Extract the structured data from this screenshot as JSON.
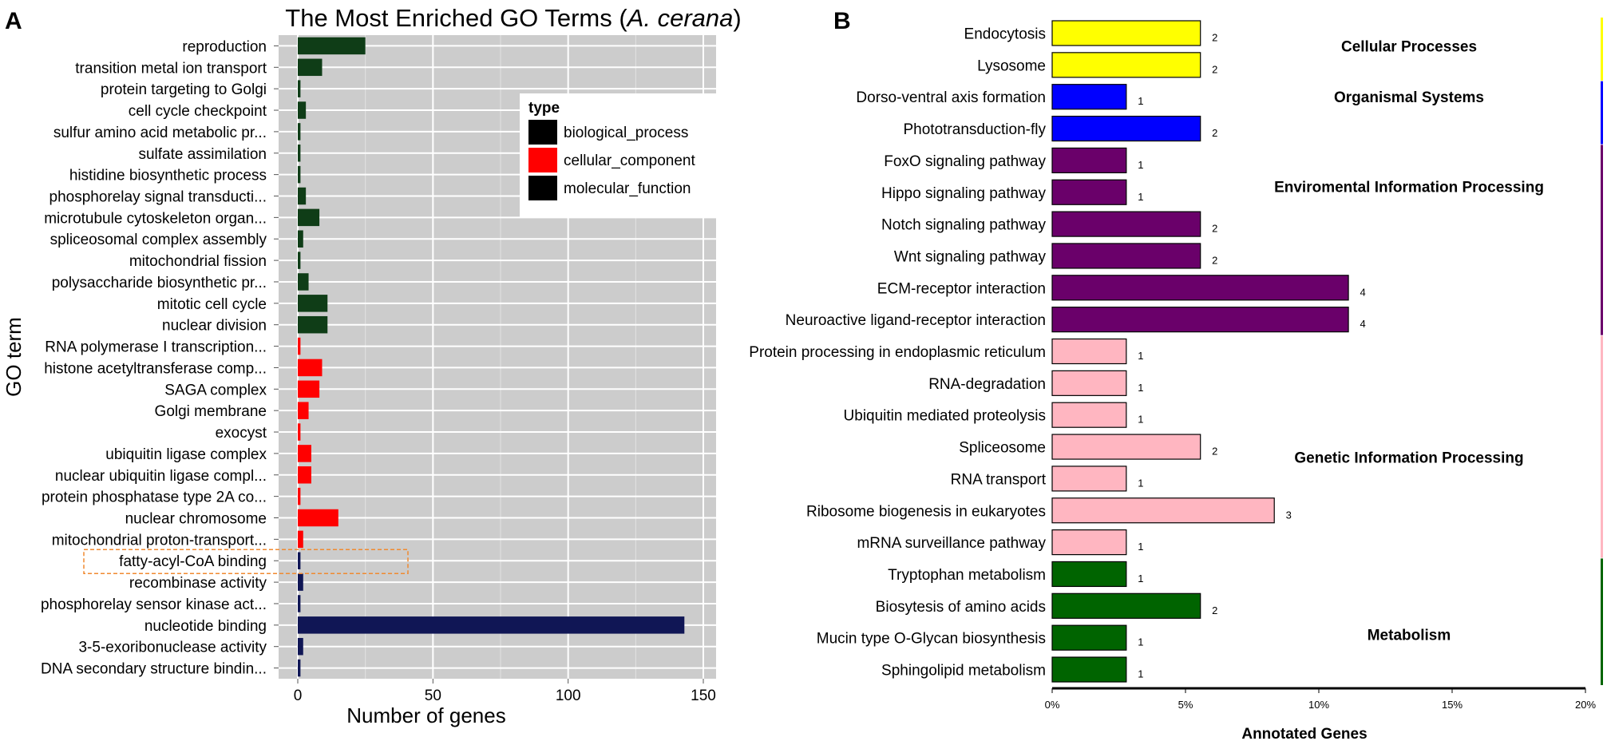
{
  "chart_data": [
    {
      "panel": "A",
      "type": "bar",
      "orientation": "horizontal",
      "title_prefix": "The Most Enriched GO Terms (",
      "title_species": "A. cerana",
      "title_suffix": ")",
      "xlabel": "Number of genes",
      "ylabel": "GO term",
      "xlim": [
        0,
        150
      ],
      "xticks": [
        0,
        50,
        100,
        150
      ],
      "grid": true,
      "legend": {
        "title": "type",
        "placement": "top-right",
        "entries": [
          {
            "label": "biological_process",
            "swatch": "#000000"
          },
          {
            "label": "cellular_component",
            "swatch": "#ff0000"
          },
          {
            "label": "molecular_function",
            "swatch": "#000000"
          }
        ]
      },
      "type_colors": {
        "biological_process": "#0f3d17",
        "cellular_component": "#ff0000",
        "molecular_function": "#101655"
      },
      "highlight_term": "fatty-acyl-CoA binding",
      "terms": [
        {
          "label": "reproduction",
          "value": 25,
          "type": "biological_process"
        },
        {
          "label": "transition metal ion transport",
          "value": 9,
          "type": "biological_process"
        },
        {
          "label": "protein targeting to Golgi",
          "value": 1,
          "type": "biological_process"
        },
        {
          "label": "cell cycle checkpoint",
          "value": 3,
          "type": "biological_process"
        },
        {
          "label": "sulfur amino acid metabolic pr...",
          "value": 1,
          "type": "biological_process"
        },
        {
          "label": "sulfate assimilation",
          "value": 1,
          "type": "biological_process"
        },
        {
          "label": "histidine biosynthetic process",
          "value": 1,
          "type": "biological_process"
        },
        {
          "label": "phosphorelay signal transducti...",
          "value": 3,
          "type": "biological_process"
        },
        {
          "label": "microtubule cytoskeleton organ...",
          "value": 8,
          "type": "biological_process"
        },
        {
          "label": "spliceosomal complex assembly",
          "value": 2,
          "type": "biological_process"
        },
        {
          "label": "mitochondrial fission",
          "value": 1,
          "type": "biological_process"
        },
        {
          "label": "polysaccharide biosynthetic pr...",
          "value": 4,
          "type": "biological_process"
        },
        {
          "label": "mitotic cell cycle",
          "value": 11,
          "type": "biological_process"
        },
        {
          "label": "nuclear division",
          "value": 11,
          "type": "biological_process"
        },
        {
          "label": "RNA polymerase I transcription...",
          "value": 1,
          "type": "cellular_component"
        },
        {
          "label": "histone acetyltransferase comp...",
          "value": 9,
          "type": "cellular_component"
        },
        {
          "label": "SAGA complex",
          "value": 8,
          "type": "cellular_component"
        },
        {
          "label": "Golgi membrane",
          "value": 4,
          "type": "cellular_component"
        },
        {
          "label": "exocyst",
          "value": 1,
          "type": "cellular_component"
        },
        {
          "label": "ubiquitin ligase complex",
          "value": 5,
          "type": "cellular_component"
        },
        {
          "label": "nuclear ubiquitin ligase compl...",
          "value": 5,
          "type": "cellular_component"
        },
        {
          "label": "protein phosphatase type 2A co...",
          "value": 1,
          "type": "cellular_component"
        },
        {
          "label": "nuclear chromosome",
          "value": 15,
          "type": "cellular_component"
        },
        {
          "label": "mitochondrial proton-transport...",
          "value": 2,
          "type": "cellular_component"
        },
        {
          "label": "fatty-acyl-CoA binding",
          "value": 1,
          "type": "molecular_function"
        },
        {
          "label": "recombinase activity",
          "value": 2,
          "type": "molecular_function"
        },
        {
          "label": "phosphorelay sensor kinase act...",
          "value": 1,
          "type": "molecular_function"
        },
        {
          "label": "nucleotide binding",
          "value": 143,
          "type": "molecular_function"
        },
        {
          "label": "3-5-exoribonuclease activity",
          "value": 2,
          "type": "molecular_function"
        },
        {
          "label": "DNA secondary structure bindin...",
          "value": 1,
          "type": "molecular_function"
        }
      ]
    },
    {
      "panel": "B",
      "type": "bar",
      "orientation": "horizontal",
      "xlabel": "Annotated Genes",
      "xlim": [
        0,
        20
      ],
      "xticks": [
        0,
        5,
        10,
        15,
        20
      ],
      "xtick_labels": [
        "0%",
        "5%",
        "10%",
        "15%",
        "20%"
      ],
      "value_unit": "percent of annotated genes",
      "groups": [
        {
          "name": "Cellular Processes",
          "color": "#ffff00"
        },
        {
          "name": "Organismal Systems",
          "color": "#0000ff"
        },
        {
          "name": "Enviromental Information Processing",
          "color": "#6a006a"
        },
        {
          "name": "Genetic Information Processing",
          "color": "#ffb6c1"
        },
        {
          "name": "Metabolism",
          "color": "#006400"
        }
      ],
      "pathways": [
        {
          "label": "Endocytosis",
          "group": "Cellular Processes",
          "percent": 5.56,
          "count": "2"
        },
        {
          "label": "Lysosome",
          "group": "Cellular Processes",
          "percent": 5.56,
          "count": "2"
        },
        {
          "label": "Dorso-ventral axis formation",
          "group": "Organismal Systems",
          "percent": 2.78,
          "count": "1"
        },
        {
          "label": "Phototransduction-fly",
          "group": "Organismal Systems",
          "percent": 5.56,
          "count": "2"
        },
        {
          "label": "FoxO signaling pathway",
          "group": "Enviromental Information Processing",
          "percent": 2.78,
          "count": "1"
        },
        {
          "label": "Hippo signaling pathway",
          "group": "Enviromental Information Processing",
          "percent": 2.78,
          "count": "1"
        },
        {
          "label": "Notch signaling pathway",
          "group": "Enviromental Information Processing",
          "percent": 5.56,
          "count": "2"
        },
        {
          "label": "Wnt signaling pathway",
          "group": "Enviromental Information Processing",
          "percent": 5.56,
          "count": "2"
        },
        {
          "label": "ECM-receptor interaction",
          "group": "Enviromental Information Processing",
          "percent": 11.11,
          "count": "4"
        },
        {
          "label": "Neuroactive ligand-receptor interaction",
          "group": "Enviromental Information Processing",
          "percent": 11.11,
          "count": "4"
        },
        {
          "label": "Protein processing in endoplasmic reticulum",
          "group": "Genetic Information Processing",
          "percent": 2.78,
          "count": "1"
        },
        {
          "label": "RNA-degradation",
          "group": "Genetic Information Processing",
          "percent": 2.78,
          "count": "1"
        },
        {
          "label": "Ubiquitin mediated proteolysis",
          "group": "Genetic Information Processing",
          "percent": 2.78,
          "count": "1"
        },
        {
          "label": "Spliceosome",
          "group": "Genetic Information Processing",
          "percent": 5.56,
          "count": "2"
        },
        {
          "label": "RNA transport",
          "group": "Genetic Information Processing",
          "percent": 2.78,
          "count": "1"
        },
        {
          "label": "Ribosome biogenesis in eukaryotes",
          "group": "Genetic Information Processing",
          "percent": 8.33,
          "count": "3"
        },
        {
          "label": "mRNA surveillance pathway",
          "group": "Genetic Information Processing",
          "percent": 2.78,
          "count": "1"
        },
        {
          "label": "Tryptophan metabolism",
          "group": "Metabolism",
          "percent": 2.78,
          "count": "1"
        },
        {
          "label": "Biosytesis of amino acids",
          "group": "Metabolism",
          "percent": 5.56,
          "count": "2"
        },
        {
          "label": "Mucin type O-Glycan biosynthesis",
          "group": "Metabolism",
          "percent": 2.78,
          "count": "1"
        },
        {
          "label": "Sphingolipid metabolism",
          "group": "Metabolism",
          "percent": 2.78,
          "count": "1"
        }
      ]
    }
  ]
}
